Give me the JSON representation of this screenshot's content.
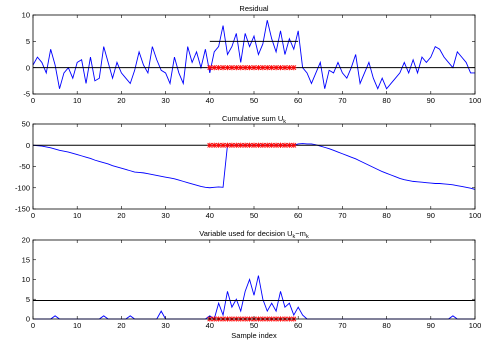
{
  "chart_data": [
    {
      "type": "line",
      "title": "Residual",
      "xlabel": "",
      "ylabel": "",
      "xlim": [
        0,
        100
      ],
      "ylim": [
        -5,
        10
      ],
      "xticks": [
        0,
        10,
        20,
        30,
        40,
        50,
        60,
        70,
        80,
        90,
        100
      ],
      "yticks": [
        -5,
        0,
        5,
        10
      ],
      "grid": false,
      "colors": {
        "signal": "#0000ff",
        "reference": "#000000",
        "marker": "#ff0000"
      },
      "series": [
        {
          "x": [
            0,
            1,
            2,
            3,
            4,
            5,
            6,
            7,
            8,
            9,
            10,
            11,
            12,
            13,
            14,
            15,
            16,
            17,
            18,
            19,
            20,
            21,
            22,
            23,
            24,
            25,
            26,
            27,
            28,
            29,
            30,
            31,
            32,
            33,
            34,
            35,
            36,
            37,
            38,
            39,
            40,
            41,
            42,
            43,
            44,
            45,
            46,
            47,
            48,
            49,
            50,
            51,
            52,
            53,
            54,
            55,
            56,
            57,
            58,
            59,
            60,
            61,
            62,
            63,
            64,
            65,
            66,
            67,
            68,
            69,
            70,
            71,
            72,
            73,
            74,
            75,
            76,
            77,
            78,
            79,
            80,
            81,
            82,
            83,
            84,
            85,
            86,
            87,
            88,
            89,
            90,
            91,
            92,
            93,
            94,
            95,
            96,
            97,
            98,
            99,
            100
          ],
          "y": [
            0.5,
            2,
            1,
            -1,
            3.5,
            0.5,
            -4,
            -1,
            0,
            -2,
            1,
            1.5,
            -3,
            2,
            -2.5,
            -2,
            4,
            1,
            -2,
            1,
            -1,
            -2,
            -3,
            -0.5,
            3,
            0.5,
            -1,
            4,
            1.5,
            -0.5,
            -1,
            -3,
            2,
            -1,
            -3,
            4,
            1,
            3,
            0,
            3.5,
            -1,
            3,
            4,
            8,
            2.5,
            4,
            6.5,
            1,
            6.5,
            4,
            6,
            2.5,
            4.5,
            9,
            5.5,
            3,
            7,
            2.5,
            5.5,
            3.5,
            7,
            0,
            -1,
            -3,
            -1,
            1,
            -4,
            -0.5,
            -1,
            1,
            -1,
            -2,
            0,
            2.5,
            -3,
            -1,
            1,
            -2,
            -4,
            -2,
            -4,
            -3,
            -2,
            -1,
            1,
            -1,
            1.5,
            -1,
            2,
            1,
            2,
            4,
            3.5,
            2,
            1,
            0,
            3,
            2,
            1,
            -1,
            -1
          ]
        },
        {
          "x": [
            0,
            100
          ],
          "y": [
            0,
            0
          ]
        },
        {
          "x": [
            40,
            60
          ],
          "y": [
            5,
            5
          ]
        },
        {
          "x": [
            40,
            41,
            42,
            43,
            44,
            45,
            46,
            47,
            48,
            49,
            50,
            51,
            52,
            53,
            54,
            55,
            56,
            57,
            58,
            59
          ],
          "y": [
            0,
            0,
            0,
            0,
            0,
            0,
            0,
            0,
            0,
            0,
            0,
            0,
            0,
            0,
            0,
            0,
            0,
            0,
            0,
            0
          ]
        }
      ]
    },
    {
      "type": "line",
      "title": "Cumulative sum U",
      "title_subscript": "k",
      "xlabel": "",
      "ylabel": "",
      "xlim": [
        0,
        100
      ],
      "ylim": [
        -150,
        50
      ],
      "xticks": [
        0,
        10,
        20,
        30,
        40,
        50,
        60,
        70,
        80,
        90,
        100
      ],
      "yticks": [
        -150,
        -100,
        -50,
        0,
        50
      ],
      "grid": false,
      "colors": {
        "signal": "#0000ff",
        "reference": "#000000",
        "marker": "#ff0000"
      },
      "series": [
        {
          "x": [
            0,
            1,
            2,
            3,
            4,
            5,
            6,
            7,
            8,
            9,
            10,
            11,
            12,
            13,
            14,
            15,
            16,
            17,
            18,
            19,
            20,
            21,
            22,
            23,
            24,
            25,
            26,
            27,
            28,
            29,
            30,
            31,
            32,
            33,
            34,
            35,
            36,
            37,
            38,
            39,
            40,
            41,
            42,
            43,
            44,
            45,
            46,
            47,
            48,
            49,
            50,
            51,
            52,
            53,
            54,
            55,
            56,
            57,
            58,
            59,
            60,
            61,
            62,
            63,
            64,
            65,
            66,
            67,
            68,
            69,
            70,
            71,
            72,
            73,
            74,
            75,
            76,
            77,
            78,
            79,
            80,
            81,
            82,
            83,
            84,
            85,
            86,
            87,
            88,
            89,
            90,
            91,
            92,
            93,
            94,
            95,
            96,
            97,
            98,
            99,
            100
          ],
          "y": [
            0,
            -1,
            -2,
            -4,
            -6,
            -9,
            -12,
            -14,
            -16,
            -19,
            -22,
            -25,
            -28,
            -31,
            -35,
            -38,
            -41,
            -44,
            -48,
            -51,
            -54,
            -57,
            -60,
            -63,
            -64,
            -65,
            -67,
            -69,
            -71,
            -73,
            -75,
            -77,
            -79,
            -82,
            -85,
            -88,
            -91,
            -94,
            -97,
            -99,
            -100,
            -99,
            -98,
            -99,
            0,
            0,
            0,
            0,
            0,
            0,
            0,
            0,
            0,
            0,
            0,
            0,
            0,
            0,
            0,
            0,
            3,
            4,
            3,
            3,
            1,
            -2,
            -5,
            -8,
            -12,
            -16,
            -20,
            -24,
            -28,
            -32,
            -37,
            -42,
            -47,
            -52,
            -57,
            -62,
            -66,
            -70,
            -74,
            -78,
            -81,
            -83,
            -85,
            -86,
            -87,
            -88,
            -89,
            -90,
            -90,
            -91,
            -92,
            -93,
            -95,
            -97,
            -99,
            -101,
            -104
          ]
        },
        {
          "x": [
            0,
            100
          ],
          "y": [
            0,
            0
          ]
        },
        {
          "x": [
            40,
            41,
            42,
            43,
            44,
            45,
            46,
            47,
            48,
            49,
            50,
            51,
            52,
            53,
            54,
            55,
            56,
            57,
            58,
            59
          ],
          "y": [
            0,
            0,
            0,
            0,
            0,
            0,
            0,
            0,
            0,
            0,
            0,
            0,
            0,
            0,
            0,
            0,
            0,
            0,
            0,
            0
          ]
        }
      ]
    },
    {
      "type": "line",
      "title": "Variable used for decision U",
      "title_subscript_1": "k",
      "title_middle": "−m",
      "title_subscript_2": "k",
      "xlabel": "Sample index",
      "ylabel": "",
      "xlim": [
        0,
        100
      ],
      "ylim": [
        0,
        20
      ],
      "xticks": [
        0,
        10,
        20,
        30,
        40,
        50,
        60,
        70,
        80,
        90,
        100
      ],
      "yticks": [
        0,
        5,
        10,
        15,
        20
      ],
      "grid": false,
      "colors": {
        "signal": "#0000ff",
        "reference": "#000000",
        "marker": "#ff0000"
      },
      "series": [
        {
          "x": [
            0,
            1,
            2,
            3,
            4,
            5,
            6,
            7,
            8,
            9,
            10,
            11,
            12,
            13,
            14,
            15,
            16,
            17,
            18,
            19,
            20,
            21,
            22,
            23,
            24,
            25,
            26,
            27,
            28,
            29,
            30,
            31,
            32,
            33,
            34,
            35,
            36,
            37,
            38,
            39,
            40,
            41,
            42,
            43,
            44,
            45,
            46,
            47,
            48,
            49,
            50,
            51,
            52,
            53,
            54,
            55,
            56,
            57,
            58,
            59,
            60,
            61,
            62,
            63,
            64,
            65,
            66,
            67,
            68,
            69,
            70,
            71,
            72,
            73,
            74,
            75,
            76,
            77,
            78,
            79,
            80,
            81,
            82,
            83,
            84,
            85,
            86,
            87,
            88,
            89,
            90,
            91,
            92,
            93,
            94,
            95,
            96,
            97,
            98,
            99,
            100
          ],
          "y": [
            0,
            0,
            0,
            0,
            0,
            0.8,
            0,
            0,
            0,
            0,
            0,
            0,
            0,
            0,
            0,
            0,
            0.8,
            0,
            0,
            0,
            0,
            0,
            0.8,
            0,
            0,
            0,
            0,
            0,
            0,
            2,
            0,
            0,
            0,
            0,
            0,
            0,
            0,
            0,
            0,
            0,
            0.8,
            0,
            4,
            1,
            7,
            3,
            5,
            2,
            7,
            10,
            6,
            11,
            5,
            2,
            4,
            2,
            7,
            3,
            4,
            1,
            3,
            1,
            0,
            0,
            0,
            0,
            0,
            0,
            0,
            0,
            0,
            0,
            0,
            0,
            0,
            0,
            0,
            0,
            0,
            0,
            0,
            0,
            0,
            0,
            0,
            0,
            0,
            0,
            0,
            0,
            0,
            0,
            0,
            0,
            0,
            0.8,
            0,
            0,
            0,
            0,
            0
          ]
        },
        {
          "x": [
            0,
            100
          ],
          "y": [
            4.7,
            4.7
          ]
        },
        {
          "x": [
            40,
            41,
            42,
            43,
            44,
            45,
            46,
            47,
            48,
            49,
            50,
            51,
            52,
            53,
            54,
            55,
            56,
            57,
            58,
            59
          ],
          "y": [
            0,
            0,
            0,
            0,
            0,
            0,
            0,
            0,
            0,
            0,
            0,
            0,
            0,
            0,
            0,
            0,
            0,
            0,
            0,
            0
          ]
        }
      ]
    }
  ]
}
